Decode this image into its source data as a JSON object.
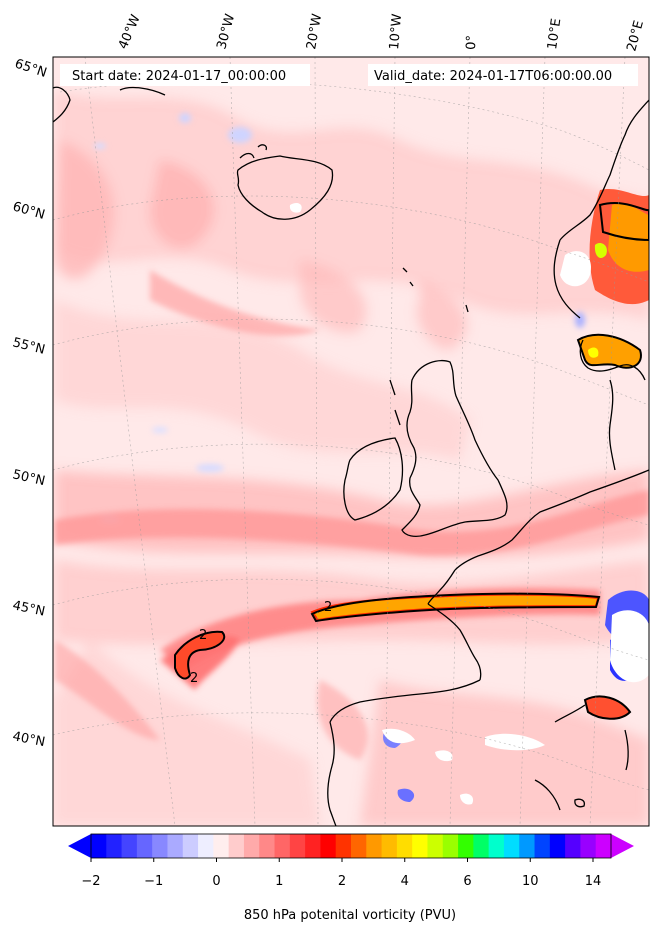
{
  "header": {
    "start_date": "Start date: 2024-01-17_00:00:00",
    "valid_date": "Valid_date: 2024-01-17T06:00:00.00"
  },
  "map": {
    "projection": "lambert-conformal",
    "region": "North Atlantic / Western Europe",
    "lon_labels": [
      "40°W",
      "30°W",
      "20°W",
      "10°W",
      "0°",
      "10°E",
      "20°E"
    ],
    "lat_labels": [
      "65°N",
      "60°N",
      "55°N",
      "50°N",
      "45°N",
      "40°N"
    ],
    "contour_label": "2",
    "contour_level_pvu": 2
  },
  "colorbar": {
    "title": "850 hPa potenital vorticity (PVU)",
    "tick_labels": [
      "−2",
      "−1",
      "0",
      "1",
      "2",
      "4",
      "6",
      "10",
      "14"
    ],
    "extend": "both",
    "colors": [
      "#0000ff",
      "#2222ff",
      "#4444ff",
      "#6666ff",
      "#8888ff",
      "#aaaaff",
      "#ccccff",
      "#eeeeff",
      "#ffeeee",
      "#ffcccc",
      "#ffaaaa",
      "#ff8888",
      "#ff6666",
      "#ff4444",
      "#ff2222",
      "#ff0000",
      "#ff3300",
      "#ff6600",
      "#ff9900",
      "#ffbb00",
      "#ffdd00",
      "#ffff00",
      "#ccff00",
      "#99ff00",
      "#33ff00",
      "#00ff66",
      "#00ffcc",
      "#00ddff",
      "#0099ff",
      "#0044ff",
      "#0000ff",
      "#5500ff",
      "#9900ff",
      "#cc00ff"
    ]
  }
}
